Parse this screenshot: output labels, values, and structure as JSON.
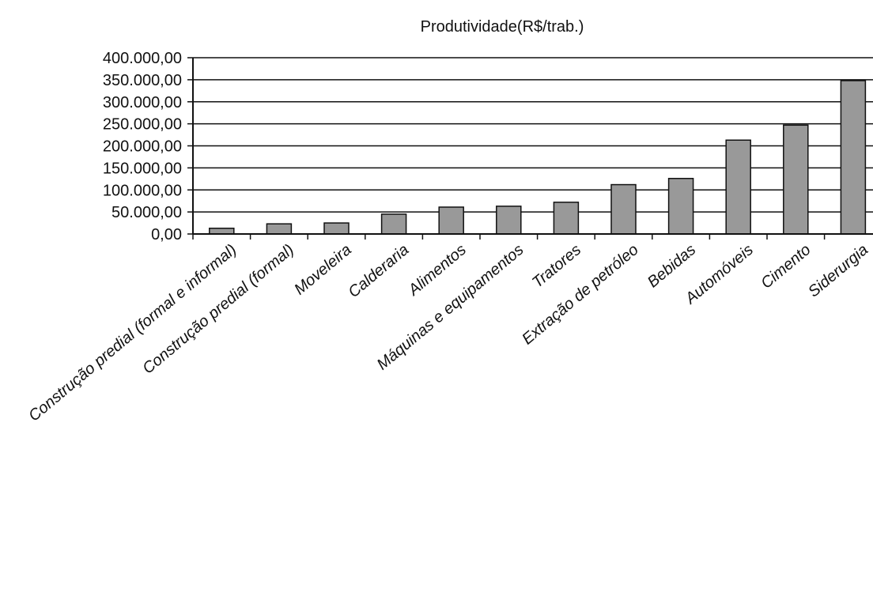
{
  "chart_data": {
    "type": "bar",
    "title": "Produtividade(R$/trab.)",
    "xlabel": "",
    "ylabel": "",
    "ylim": [
      0,
      400000
    ],
    "yticks": [
      0,
      50000,
      100000,
      150000,
      200000,
      250000,
      300000,
      350000,
      400000
    ],
    "ytick_labels": [
      "0,00",
      "50.000,00",
      "100.000,00",
      "150.000,00",
      "200.000,00",
      "250.000,00",
      "300.000,00",
      "350.000,00",
      "400.000,00"
    ],
    "grid": true,
    "legend": "none",
    "bar_color": "#999999",
    "categories": [
      "Construção predial (formal e informal)",
      "Construção predial (formal)",
      "Moveleira",
      "Calderaria",
      "Alimentos",
      "Máquinas e equipamentos",
      "Tratores",
      "Extração de petróleo",
      "Bebidas",
      "Automóveis",
      "Cimento",
      "Siderurgia"
    ],
    "values": [
      13000,
      23000,
      25000,
      45000,
      61000,
      63000,
      72000,
      112000,
      126000,
      213000,
      247000,
      348000
    ]
  }
}
